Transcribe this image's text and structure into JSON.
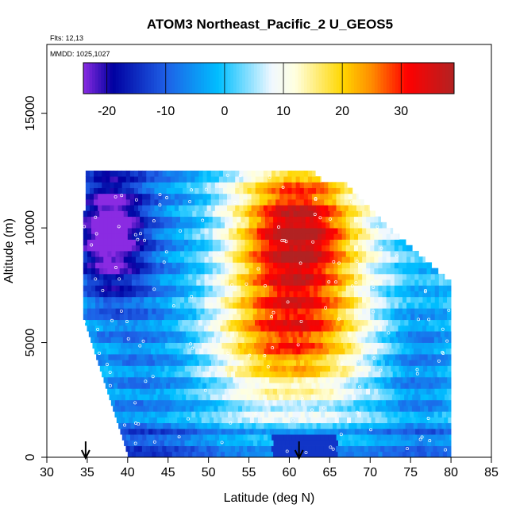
{
  "chart_data": {
    "type": "heatmap",
    "title": "ATOM3 Northeast_Pacific_2 U_GEOS5",
    "annotations": [
      "Flts: 12,13",
      "MMDD: 1025,1027"
    ],
    "xlabel": "Latitude (deg N)",
    "ylabel": "Altitude (m)",
    "xlim": [
      30,
      85
    ],
    "ylim": [
      0,
      18000
    ],
    "x_ticks": [
      30,
      35,
      40,
      45,
      50,
      55,
      60,
      65,
      70,
      75,
      80,
      85
    ],
    "y_ticks": [
      0,
      5000,
      10000,
      15000
    ],
    "colorbar": {
      "range": [
        -24,
        39
      ],
      "ticks": [
        -20,
        -10,
        0,
        10,
        20,
        30
      ],
      "colors": [
        "#8a2be2",
        "#0000a0",
        "#1e5fe6",
        "#00bfff",
        "#f0f8ff",
        "#ffffe0",
        "#ffd700",
        "#ff8c00",
        "#ff0000",
        "#b22222"
      ]
    },
    "arrows_at_latitude": [
      34.8,
      61.2
    ],
    "data_extent": {
      "latitude_range": [
        34.5,
        80.0
      ],
      "altitude_range": [
        0,
        12500
      ]
    },
    "wind_profile_description": {
      "jet_max_latitude": 62,
      "jet_max_altitude": 9800,
      "jet_max_value": 36,
      "southern_min_value": -22,
      "southern_min_latitude": 38,
      "southern_min_altitude": 10000
    }
  }
}
